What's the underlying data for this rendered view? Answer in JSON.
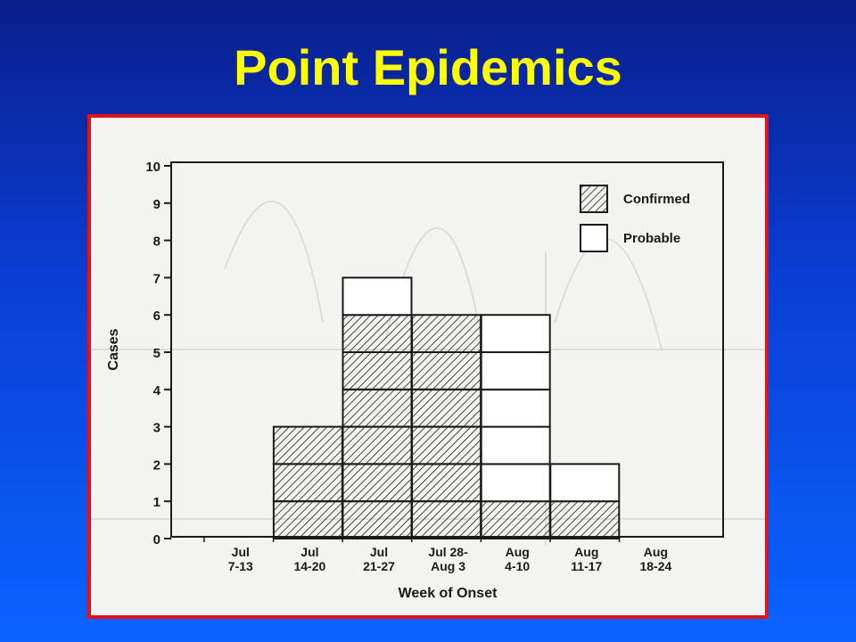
{
  "slide": {
    "title": "Point Epidemics"
  },
  "chart_data": {
    "type": "bar",
    "stacked": true,
    "categories": [
      "Jul\n7-13",
      "Jul\n14-20",
      "Jul\n21-27",
      "Jul 28-\nAug 3",
      "Aug\n4-10",
      "Aug\n11-17",
      "Aug\n18-24"
    ],
    "series": [
      {
        "name": "Confirmed",
        "values": [
          0,
          3,
          6,
          6,
          1,
          1,
          0
        ],
        "pattern": "hatched"
      },
      {
        "name": "Probable",
        "values": [
          0,
          0,
          1,
          0,
          5,
          1,
          0
        ],
        "pattern": "open"
      }
    ],
    "xlabel": "Week of Onset",
    "ylabel": "Cases",
    "ylim": [
      0,
      10
    ],
    "yticks": [
      0,
      1,
      2,
      3,
      4,
      5,
      6,
      7,
      8,
      9,
      10
    ],
    "legend_position": "top-right",
    "bar_style": "each case drawn as a separate stacked box",
    "colors": {
      "accent_title": "#ffff00",
      "frame_border": "#e0131b",
      "ink": "#1a1a1a"
    }
  }
}
